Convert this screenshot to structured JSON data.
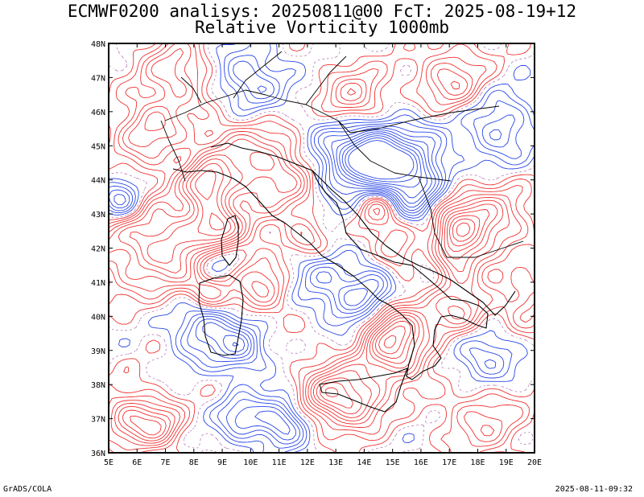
{
  "title": {
    "line1": "ECMWF0200 analisys: 20250811@00 FcT: 2025-08-19+12",
    "line2": "Relative Vorticity 1000mb"
  },
  "map": {
    "lon_range": [
      5,
      20
    ],
    "lat_range": [
      36,
      48
    ],
    "lon_ticks": [
      "5E",
      "6E",
      "7E",
      "8E",
      "9E",
      "10E",
      "11E",
      "12E",
      "13E",
      "14E",
      "15E",
      "16E",
      "17E",
      "18E",
      "19E",
      "20E"
    ],
    "lat_ticks": [
      "36N",
      "37N",
      "38N",
      "39N",
      "40N",
      "41N",
      "42N",
      "43N",
      "44N",
      "45N",
      "46N",
      "47N",
      "48N"
    ],
    "colors": {
      "positive": "#ef3232",
      "negative": "#2846e6",
      "zero": "#b478b4",
      "coast": "#000000"
    }
  },
  "footer": {
    "left": "GrADS/COLA",
    "right": "2025-08-11-09:32"
  }
}
